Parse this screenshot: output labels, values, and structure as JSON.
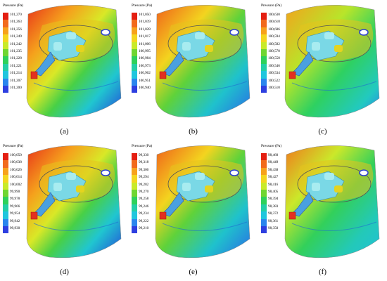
{
  "legend_title": "Pressure (Pa)",
  "legend_colors": [
    "#e41f12",
    "#f26a1c",
    "#f7a21b",
    "#f4d61f",
    "#c9ea29",
    "#6fd632",
    "#2ed15a",
    "#23cfa6",
    "#20c6de",
    "#2a86ee",
    "#2e3fe0"
  ],
  "panels": [
    {
      "label": "(a)",
      "values": [
        "101,270",
        "101,263",
        "101,256",
        "101,249",
        "101,242",
        "101,235",
        "101,228",
        "101,221",
        "101,214",
        "101,207",
        "101,200"
      ]
    },
    {
      "label": "(b)",
      "values": [
        "101,050",
        "101,039",
        "101,028",
        "101,017",
        "101,006",
        "100,995",
        "100,984",
        "100,973",
        "100,962",
        "100,951",
        "100,940"
      ]
    },
    {
      "label": "(c)",
      "values": [
        "100,630",
        "100,618",
        "100,606",
        "100,594",
        "100,582",
        "100,570",
        "100,558",
        "100,546",
        "100,534",
        "100,522",
        "100,510"
      ]
    },
    {
      "label": "(d)",
      "values": [
        "100,050",
        "100,038",
        "100,026",
        "100,014",
        "100,002",
        "99,990",
        "99,978",
        "99,966",
        "99,954",
        "99,942",
        "99,930"
      ]
    },
    {
      "label": "(e)",
      "values": [
        "99,330",
        "99,318",
        "99,306",
        "99,294",
        "99,282",
        "99,270",
        "99,258",
        "99,246",
        "99,234",
        "99,222",
        "99,210"
      ]
    },
    {
      "label": "(f)",
      "values": [
        "98,460",
        "98,449",
        "98,438",
        "98,427",
        "98,416",
        "98,405",
        "98,394",
        "98,383",
        "98,372",
        "98,361",
        "98,350"
      ]
    }
  ]
}
